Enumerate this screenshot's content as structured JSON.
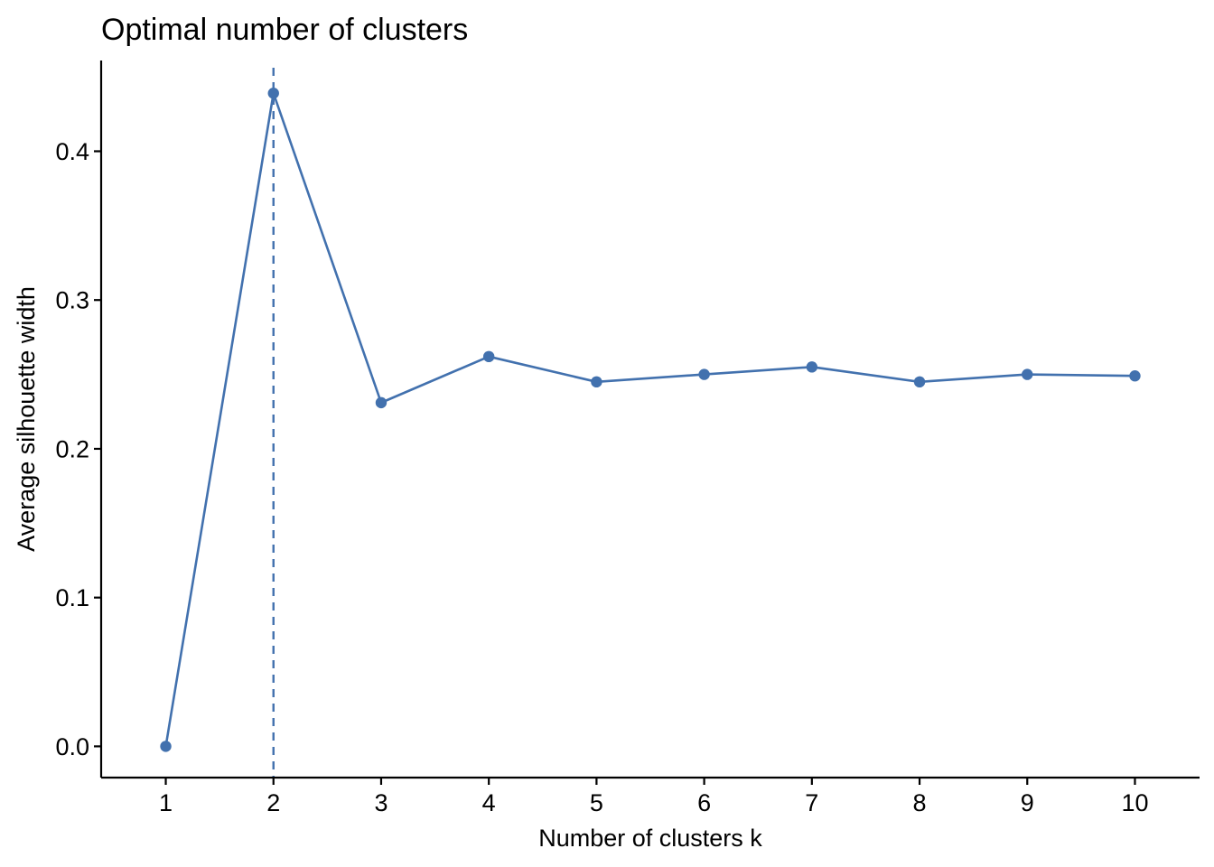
{
  "chart_data": {
    "type": "line",
    "title": "Optimal number of clusters",
    "xlabel": "Number of clusters k",
    "ylabel": "Average silhouette width",
    "x": [
      1,
      2,
      3,
      4,
      5,
      6,
      7,
      8,
      9,
      10
    ],
    "x_tick_labels": [
      "1",
      "2",
      "3",
      "4",
      "5",
      "6",
      "7",
      "8",
      "9",
      "10"
    ],
    "y_ticks": [
      0.0,
      0.1,
      0.2,
      0.3,
      0.4
    ],
    "y_tick_labels": [
      "0.0",
      "0.1",
      "0.2",
      "0.3",
      "0.4"
    ],
    "series": [
      {
        "values": [
          0.0,
          0.439,
          0.231,
          0.262,
          0.245,
          0.25,
          0.255,
          0.245,
          0.25,
          0.249
        ]
      }
    ],
    "optimal_k": 2,
    "xlim": [
      0.4,
      10.6
    ],
    "ylim": [
      -0.021,
      0.461
    ],
    "grid": false,
    "legend": "none",
    "colors": {
      "series": "#4271AE",
      "reference_line": "#4271AE",
      "axis": "#000000",
      "background": "#FFFFFF"
    }
  }
}
